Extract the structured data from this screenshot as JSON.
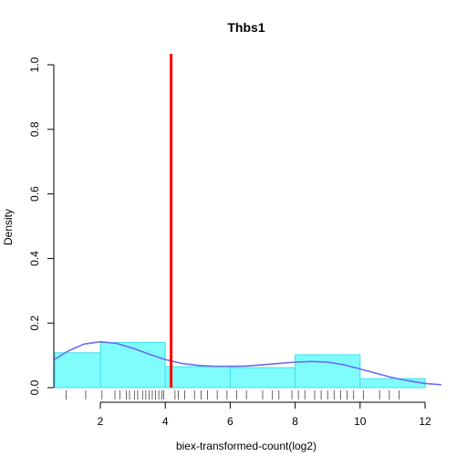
{
  "chart_data": {
    "type": "histogram",
    "title": "Thbs1",
    "xlabel": "biex-transformed-count(log2)",
    "ylabel": "Density",
    "xlim": [
      0.6,
      12.5
    ],
    "ylim": [
      0,
      1.0
    ],
    "x_ticks": [
      2,
      4,
      6,
      8,
      10,
      12
    ],
    "y_ticks": [
      0.0,
      0.2,
      0.4,
      0.6,
      0.8,
      1.0
    ],
    "x_tick_labels": [
      "2",
      "4",
      "6",
      "8",
      "10",
      "12"
    ],
    "y_tick_labels": [
      "0.0",
      "0.2",
      "0.4",
      "0.6",
      "0.8",
      "1.0"
    ],
    "bins": [
      {
        "x0": 0.6,
        "x1": 2.0,
        "density": 0.108
      },
      {
        "x0": 2.0,
        "x1": 4.0,
        "density": 0.14
      },
      {
        "x0": 4.0,
        "x1": 6.0,
        "density": 0.065
      },
      {
        "x0": 6.0,
        "x1": 8.0,
        "density": 0.062
      },
      {
        "x0": 8.0,
        "x1": 10.0,
        "density": 0.102
      },
      {
        "x0": 10.0,
        "x1": 12.0,
        "density": 0.028
      }
    ],
    "density_curve": {
      "x": [
        0.6,
        1.0,
        1.5,
        2.0,
        2.5,
        3.0,
        3.5,
        4.0,
        4.5,
        5.0,
        5.5,
        6.0,
        6.5,
        7.0,
        7.5,
        8.0,
        8.5,
        9.0,
        9.5,
        10.0,
        10.5,
        11.0,
        11.5,
        12.0,
        12.5
      ],
      "y": [
        0.088,
        0.113,
        0.135,
        0.142,
        0.137,
        0.122,
        0.104,
        0.087,
        0.075,
        0.069,
        0.066,
        0.066,
        0.067,
        0.071,
        0.075,
        0.079,
        0.081,
        0.079,
        0.071,
        0.058,
        0.044,
        0.031,
        0.021,
        0.013,
        0.009
      ]
    },
    "threshold_line": {
      "x": 4.18,
      "color": "#ff0000"
    },
    "rug": [
      0.95,
      1.55,
      2.05,
      2.45,
      2.6,
      2.8,
      2.9,
      3.05,
      3.15,
      3.3,
      3.4,
      3.5,
      3.6,
      3.7,
      3.8,
      3.9,
      3.95,
      4.3,
      4.4,
      4.6,
      4.9,
      5.1,
      5.3,
      5.6,
      5.9,
      6.2,
      6.5,
      7.0,
      7.3,
      7.5,
      7.9,
      8.1,
      8.3,
      8.6,
      8.8,
      9.0,
      9.2,
      9.4,
      9.6,
      9.8,
      10.1,
      10.6,
      10.9,
      11.2
    ],
    "colors": {
      "bar_fill": "#7ffcfc",
      "bar_stroke": "#40e0e8",
      "density_line": "#6b6bf5",
      "threshold": "#ff0000",
      "rug": "#404040"
    },
    "grid": false,
    "legend": "none"
  }
}
